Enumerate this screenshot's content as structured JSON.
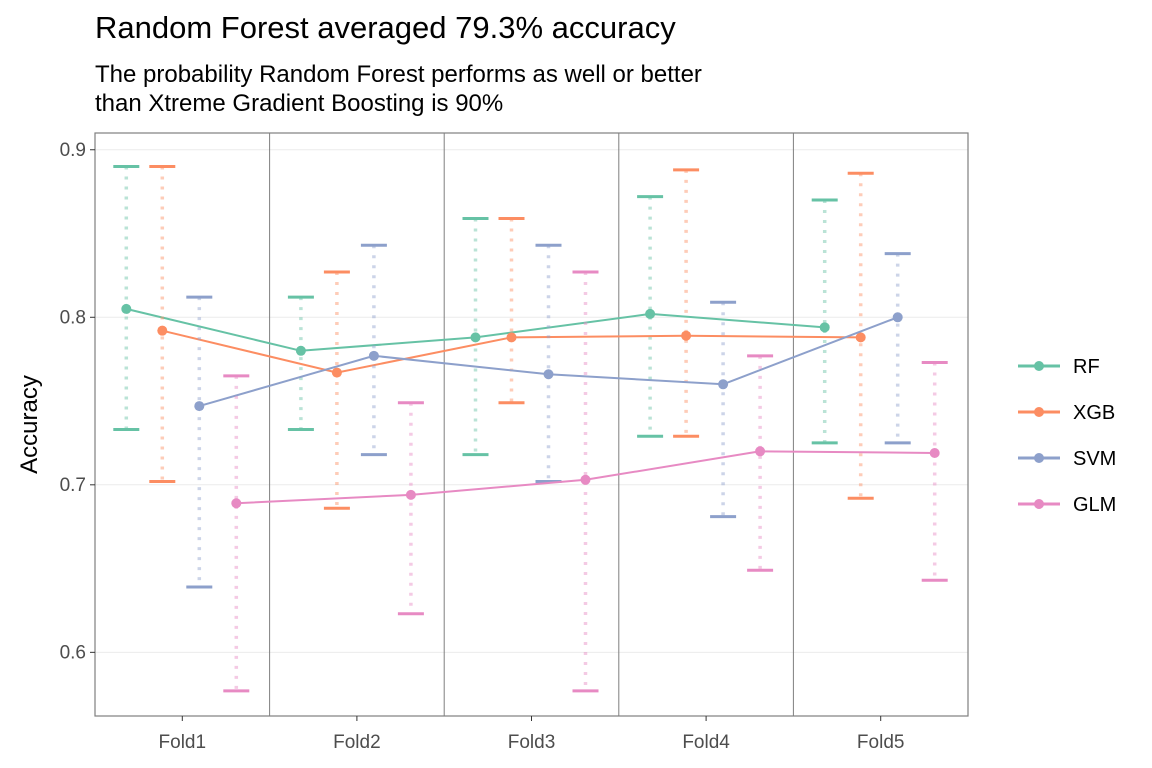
{
  "chart_data": {
    "type": "line",
    "title": "Random Forest averaged 79.3% accuracy",
    "subtitle_lines": [
      "The probability Random Forest performs as well or better",
      "than Xtreme Gradient Boosting is 90%"
    ],
    "ylabel": "Accuracy",
    "xlabel": "",
    "categories": [
      "Fold1",
      "Fold2",
      "Fold3",
      "Fold4",
      "Fold5"
    ],
    "ylim": [
      0.562,
      0.91
    ],
    "yticks": [
      0.6,
      0.7,
      0.8,
      0.9
    ],
    "ytick_labels": [
      "0.6",
      "0.7",
      "0.8",
      "0.9"
    ],
    "grid": true,
    "legend_position": "right",
    "series": [
      {
        "name": "RF",
        "color": "#66c2a5",
        "mean": [
          0.805,
          0.78,
          0.788,
          0.802,
          0.794
        ],
        "lower": [
          0.733,
          0.733,
          0.718,
          0.729,
          0.725
        ],
        "upper": [
          0.89,
          0.812,
          0.859,
          0.872,
          0.87
        ]
      },
      {
        "name": "XGB",
        "color": "#fc8d62",
        "mean": [
          0.792,
          0.767,
          0.788,
          0.789,
          0.788
        ],
        "lower": [
          0.702,
          0.686,
          0.749,
          0.729,
          0.692
        ],
        "upper": [
          0.89,
          0.827,
          0.859,
          0.888,
          0.886
        ]
      },
      {
        "name": "SVM",
        "color": "#8da0cb",
        "mean": [
          0.747,
          0.777,
          0.766,
          0.76,
          0.8
        ],
        "lower": [
          0.639,
          0.718,
          0.702,
          0.681,
          0.725
        ],
        "upper": [
          0.812,
          0.843,
          0.843,
          0.809,
          0.838
        ]
      },
      {
        "name": "GLM",
        "color": "#e78ac3",
        "mean": [
          0.689,
          0.694,
          0.703,
          0.72,
          0.719
        ],
        "lower": [
          0.577,
          0.623,
          0.577,
          0.649,
          0.643
        ],
        "upper": [
          0.765,
          0.749,
          0.827,
          0.777,
          0.773
        ]
      }
    ]
  }
}
